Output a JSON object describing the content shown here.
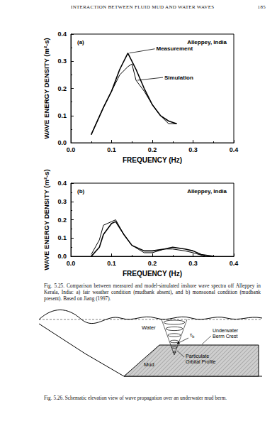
{
  "header": {
    "title": "INTERACTION BETWEEN FLUID MUD AND WATER WAVES",
    "page": "185"
  },
  "chart_data": [
    {
      "type": "line",
      "title": "(a)",
      "subtitle": "Alleppey, India",
      "x_label": "FREQUENCY (Hz)",
      "y_label": "WAVE ENERGY DENSITY (m²-s)",
      "series": [
        {
          "name": "Measurement",
          "color": "#000000",
          "x": [
            0.05,
            0.08,
            0.1,
            0.12,
            0.14,
            0.16,
            0.18,
            0.2,
            0.22,
            0.24,
            0.26
          ],
          "values": [
            0.03,
            0.13,
            0.19,
            0.27,
            0.33,
            0.27,
            0.2,
            0.14,
            0.1,
            0.08,
            0.07
          ]
        },
        {
          "name": "Simulation",
          "color": "#000000",
          "x": [
            0.05,
            0.08,
            0.1,
            0.12,
            0.14,
            0.15,
            0.16,
            0.18,
            0.2,
            0.22,
            0.24,
            0.26
          ],
          "values": [
            0.03,
            0.13,
            0.19,
            0.25,
            0.28,
            0.29,
            0.23,
            0.19,
            0.14,
            0.1,
            0.07,
            0.07
          ]
        }
      ],
      "xlim": [
        0,
        0.4
      ],
      "xticks": [
        {
          "value": 0,
          "label": "0.0"
        },
        0.1,
        0.2,
        0.3,
        0.4
      ],
      "ylim": [
        0,
        0.4
      ],
      "yticks": [
        {
          "value": 0,
          "label": "0.0"
        },
        0.1,
        0.2,
        0.3,
        0.4
      ],
      "grid": false
    },
    {
      "type": "line",
      "title": "(b)",
      "subtitle": "Alleppey, India",
      "x_label": "FREQUENCY (Hz)",
      "y_label": "WAVE ENERGY DENSITY (m²-s)",
      "series": [
        {
          "color": "#000000",
          "x": [
            0.05,
            0.07,
            0.08,
            0.1,
            0.11,
            0.13,
            0.15,
            0.18,
            0.2,
            0.23,
            0.25,
            0.28,
            0.3,
            0.32,
            0.35
          ],
          "values": [
            0,
            0.05,
            0.12,
            0.18,
            0.19,
            0.12,
            0.06,
            0.03,
            0.03,
            0.04,
            0.05,
            0.04,
            0.03,
            0.01,
            0
          ]
        },
        {
          "color": "#000000",
          "x": [
            0.05,
            0.07,
            0.08,
            0.1,
            0.11,
            0.13,
            0.15,
            0.18,
            0.2,
            0.23,
            0.25,
            0.28,
            0.3,
            0.33
          ],
          "values": [
            0.01,
            0.09,
            0.17,
            0.19,
            0.2,
            0.12,
            0.06,
            0.02,
            0.02,
            0.04,
            0.04,
            0.03,
            0.02,
            0
          ]
        }
      ],
      "xlim": [
        0,
        0.4
      ],
      "xticks": [
        {
          "value": 0,
          "label": "0.0"
        },
        0.1,
        0.2,
        0.3,
        0.4
      ],
      "ylim": [
        0,
        0.4
      ],
      "yticks": [
        {
          "value": 0,
          "label": "0.0"
        },
        0.1,
        0.2,
        0.3,
        0.4
      ],
      "grid": false
    }
  ],
  "captions": [
    {
      "label": "Fig. 5.25.",
      "text": "Comparison between measured and model-simulated inshore wave spectra off Alleppey in Kerala, India: a) fair weather condition (mudbank absent), and b) monsoonal condition (mudbank present). Based on Jiang (1997)."
    },
    {
      "label": "Fig. 5.26.",
      "text": "Schematic elevation view of wave propagation over an underwater mud berm."
    }
  ],
  "diagram": {
    "labels": {
      "water": "Water",
      "stress": "τ",
      "stress_subscript": "b",
      "berm": [
        "Underwater",
        "Berm Crest"
      ],
      "mud": "Mud",
      "orbit": [
        "Particulate",
        "Orbital Profile"
      ]
    }
  }
}
